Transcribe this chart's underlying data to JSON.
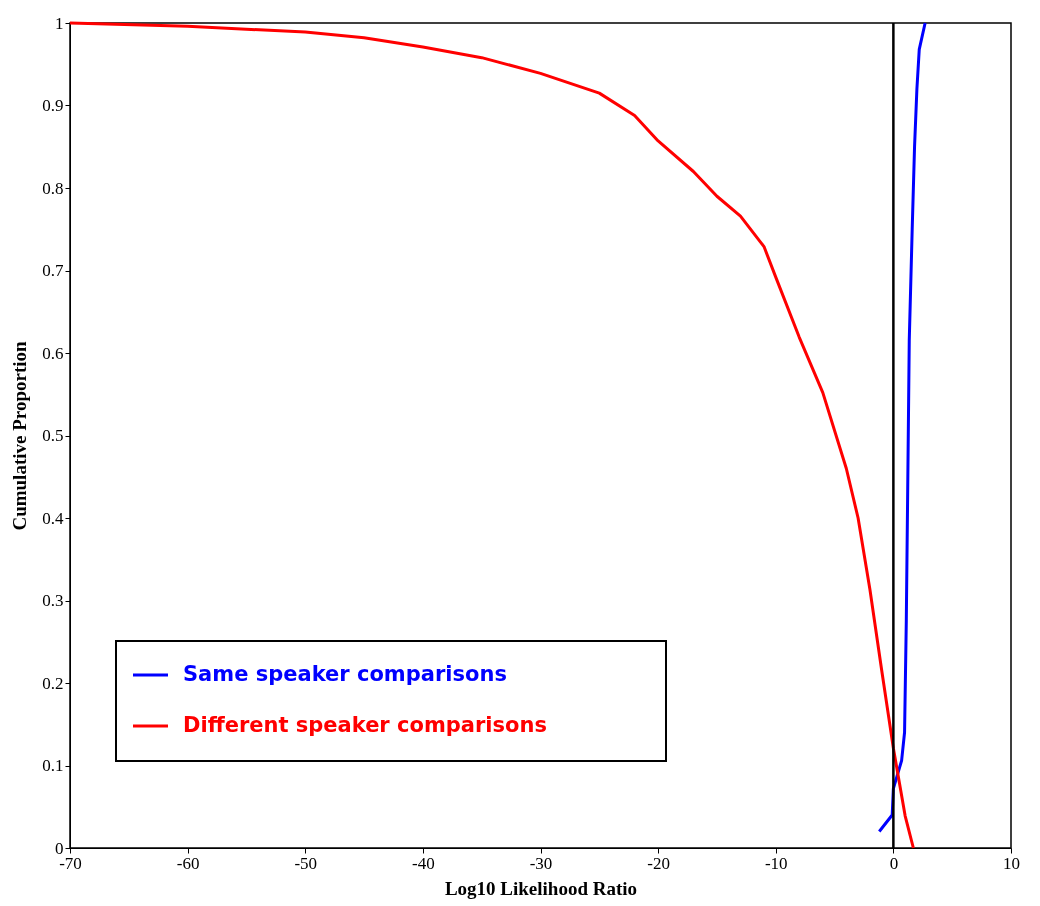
{
  "chart_data": {
    "type": "line",
    "xlabel": "Log10 Likelihood Ratio",
    "ylabel": "Cumulative Proportion",
    "xlim": [
      -70,
      10
    ],
    "xticks": [
      -70,
      -60,
      -50,
      -40,
      -30,
      -20,
      -10,
      0,
      10
    ],
    "ylim": [
      0,
      1
    ],
    "yticks": [
      0,
      0.1,
      0.2,
      0.3,
      0.4,
      0.5,
      0.6,
      0.7,
      0.8,
      0.9,
      1
    ],
    "grid": false,
    "legend": "bottom left",
    "marker": "none",
    "line_style": "solid",
    "ref_lines": [
      {
        "axis": "x",
        "value": 0,
        "color": "#000000"
      }
    ],
    "series": [
      {
        "name": "Same speaker comparisons",
        "color": "#0000ff",
        "x": [
          -1.2,
          -0.1,
          0,
          0.7,
          0.95,
          1.1,
          1.2,
          1.35,
          1.6,
          1.8,
          2.0,
          2.2,
          2.7
        ],
        "values": [
          0.02,
          0.04,
          0.072,
          0.106,
          0.14,
          0.276,
          0.41,
          0.615,
          0.75,
          0.85,
          0.92,
          0.968,
          1.0
        ]
      },
      {
        "name": "Different speaker comparisons",
        "color": "#ff0000",
        "x": [
          -70,
          -60,
          -50,
          -45,
          -40,
          -35,
          -30,
          -25,
          -22,
          -20,
          -17,
          -15,
          -13,
          -11,
          -10,
          -8,
          -6,
          -4,
          -3,
          -2,
          -1,
          0,
          0.5,
          1,
          1.7
        ],
        "values": [
          1.0,
          0.996,
          0.989,
          0.982,
          0.971,
          0.958,
          0.939,
          0.915,
          0.888,
          0.857,
          0.82,
          0.79,
          0.766,
          0.729,
          0.692,
          0.619,
          0.552,
          0.46,
          0.4,
          0.314,
          0.216,
          0.121,
          0.08,
          0.039,
          0.0
        ]
      }
    ]
  }
}
